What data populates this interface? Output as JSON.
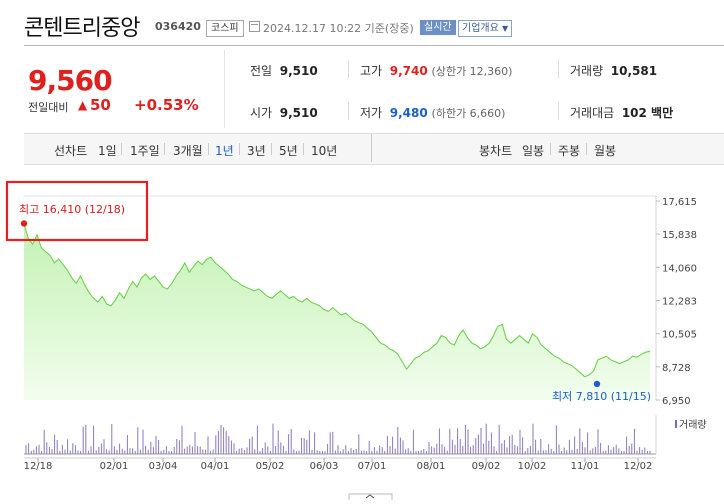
{
  "header": {
    "company_name": "콘텐트리중앙",
    "stock_code": "036420",
    "market_badge": "코스피",
    "datetime_label": "2024.12.17 10:22 기준(장중)",
    "realtime_badge": "실시간",
    "company_overview_label": "기업개요"
  },
  "quote": {
    "price": "9,560",
    "change_label": "전일대비",
    "change_arrow": "▲",
    "change": "50",
    "change_percent": "+0.53%",
    "colors": {
      "up": "#e0201c",
      "down": "#1a5fc7"
    }
  },
  "stats": {
    "prev_close_label": "전일",
    "prev_close": "9,510",
    "high_label": "고가",
    "high": "9,740",
    "upper_limit": "(상한가 12,360)",
    "volume_label": "거래량",
    "volume": "10,581",
    "open_label": "시가",
    "open": "9,510",
    "low_label": "저가",
    "low": "9,480",
    "lower_limit": "(하한가 6,660)",
    "amount_label": "거래대금",
    "amount": "102 백만"
  },
  "tabs": {
    "line_chart_label": "선차트",
    "periods": [
      "1일",
      "1주일",
      "3개월",
      "1년",
      "3년",
      "5년",
      "10년"
    ],
    "active_period": "1년",
    "candle_chart_label": "봉차트",
    "candle_periods": [
      "일봉",
      "주봉",
      "월봉"
    ]
  },
  "chart_data": {
    "type": "area",
    "y_ticks": [
      "17,615",
      "15,838",
      "14,060",
      "12,283",
      "10,505",
      "8,728",
      "6,950"
    ],
    "ylim": [
      6950,
      17615
    ],
    "x_ticks": [
      "12/18",
      "02/01",
      "03/04",
      "04/01",
      "05/02",
      "06/03",
      "07/01",
      "08/01",
      "09/02",
      "10/02",
      "11/01",
      "12/02"
    ],
    "high_annotation": "최고 16,410 (12/18)",
    "low_annotation": "최저 7,810 (11/15)",
    "volume_label": "거래량",
    "series": [
      {
        "values": [
          16410,
          15600,
          15300,
          15800,
          15100,
          14900,
          14700,
          14300,
          14500,
          14200,
          13900,
          13500,
          13200,
          13600,
          13100,
          12700,
          12400,
          12200,
          12500,
          12100,
          12000,
          12300,
          12700,
          12400,
          12900,
          13300,
          13000,
          13500,
          13700,
          13400,
          13600,
          13300,
          13000,
          12900,
          13200,
          13600,
          13900,
          14300,
          13800,
          14100,
          14400,
          14200,
          14500,
          14600,
          14300,
          14100,
          13900,
          13700,
          13400,
          13300,
          13100,
          13000,
          12900,
          12800,
          12900,
          12700,
          12500,
          12400,
          12600,
          12800,
          12600,
          12400,
          12500,
          12300,
          12200,
          12400,
          12200,
          12100,
          12000,
          11800,
          11700,
          11900,
          11700,
          11500,
          11600,
          11400,
          11200,
          11100,
          11000,
          10800,
          10600,
          10300,
          10000,
          9900,
          9700,
          9600,
          9400,
          9000,
          8600,
          8900,
          9200,
          9300,
          9500,
          9600,
          9800,
          10000,
          10400,
          10300,
          10000,
          9900,
          10400,
          10700,
          10300,
          10000,
          9900,
          9700,
          9800,
          10000,
          10400,
          10900,
          11000,
          10200,
          10000,
          10200,
          10400,
          10200,
          10000,
          10500,
          10300,
          9900,
          9700,
          9500,
          9300,
          9200,
          9000,
          8900,
          8800,
          8600,
          8400,
          8200,
          8300,
          8500,
          9100,
          9200,
          9300,
          9100,
          9000,
          8900,
          9000,
          9100,
          9300,
          9250,
          9400,
          9510,
          9560
        ]
      }
    ]
  }
}
